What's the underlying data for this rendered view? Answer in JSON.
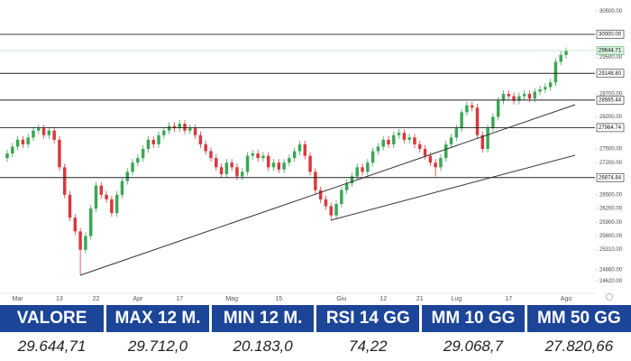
{
  "chart_data": {
    "type": "candlestick",
    "up_color": "#3aa655",
    "down_color": "#d8383d",
    "categories": [
      null,
      null,
      "Mar",
      null,
      null,
      null,
      null,
      null,
      null,
      null,
      "13",
      null,
      null,
      null,
      null,
      null,
      null,
      "22",
      null,
      null,
      null,
      null,
      null,
      null,
      null,
      "Apr",
      null,
      null,
      null,
      null,
      null,
      null,
      null,
      "17",
      null,
      null,
      null,
      null,
      null,
      null,
      null,
      null,
      null,
      "Mag",
      null,
      null,
      null,
      null,
      null,
      null,
      null,
      null,
      "15",
      null,
      null,
      null,
      null,
      null,
      null,
      null,
      null,
      null,
      null,
      null,
      "Giu",
      null,
      null,
      null,
      null,
      null,
      null,
      null,
      "12",
      null,
      null,
      null,
      null,
      null,
      null,
      "21",
      null,
      null,
      null,
      null,
      null,
      null,
      "Lug",
      null,
      null,
      null,
      null,
      null,
      null,
      null,
      null,
      null,
      "17",
      null,
      null,
      null,
      null,
      null,
      null,
      null,
      null,
      null,
      null,
      "Ago"
    ],
    "open": [
      27300,
      27400,
      27550,
      27700,
      27600,
      27750,
      27900,
      27950,
      27800,
      27900,
      27700,
      27100,
      26500,
      26000,
      25700,
      25300,
      25600,
      26200,
      26700,
      26500,
      26400,
      26100,
      26500,
      26800,
      27000,
      27200,
      27300,
      27500,
      27700,
      27600,
      27800,
      27900,
      28000,
      27950,
      28050,
      27900,
      27950,
      27800,
      27600,
      27450,
      27300,
      27100,
      26950,
      27200,
      27100,
      26900,
      27000,
      27350,
      27400,
      27300,
      27350,
      27100,
      27200,
      27050,
      27200,
      27300,
      27450,
      27600,
      27350,
      27000,
      26600,
      26400,
      26250,
      26050,
      26300,
      26600,
      26750,
      26900,
      27100,
      27000,
      27200,
      27450,
      27550,
      27700,
      27600,
      27800,
      27850,
      27700,
      27750,
      27600,
      27500,
      27350,
      27200,
      27100,
      27300,
      27600,
      27750,
      27950,
      28300,
      28450,
      28400,
      27800,
      27500,
      27950,
      28200,
      28550,
      28700,
      28650,
      28550,
      28650,
      28700,
      28600,
      28750,
      28800,
      28850,
      28950,
      29400,
      29550
    ],
    "high": [
      27480,
      27630,
      27780,
      27780,
      27830,
      27980,
      28030,
      28030,
      27980,
      27980,
      27780,
      27180,
      26580,
      26080,
      25780,
      25680,
      26280,
      26780,
      26780,
      26580,
      26480,
      26580,
      26880,
      27080,
      27280,
      27380,
      27580,
      27780,
      27780,
      27880,
      27980,
      28080,
      28080,
      28130,
      28130,
      28030,
      28030,
      27880,
      27680,
      27530,
      27380,
      27180,
      27280,
      27280,
      27180,
      27080,
      27430,
      27480,
      27480,
      27430,
      27430,
      27280,
      27280,
      27280,
      27380,
      27530,
      27680,
      27680,
      27430,
      27080,
      26680,
      26480,
      26330,
      26380,
      26680,
      26830,
      26980,
      27180,
      27180,
      27280,
      27530,
      27630,
      27780,
      27780,
      27880,
      27930,
      27930,
      27830,
      27830,
      27680,
      27580,
      27430,
      27280,
      27380,
      27680,
      27830,
      28030,
      28380,
      28530,
      28530,
      28480,
      27880,
      28030,
      28280,
      28630,
      28780,
      28780,
      28730,
      28730,
      28780,
      28780,
      28830,
      28880,
      28930,
      29030,
      29480,
      29630,
      29712
    ],
    "low": [
      27220,
      27320,
      27470,
      27520,
      27520,
      27670,
      27820,
      27720,
      27720,
      27620,
      27020,
      26420,
      25920,
      25620,
      24750,
      25220,
      25520,
      26120,
      26420,
      26320,
      26020,
      26020,
      26420,
      26720,
      26920,
      27120,
      27220,
      27420,
      27520,
      27520,
      27720,
      27820,
      27870,
      27870,
      27820,
      27820,
      27720,
      27520,
      27370,
      27220,
      27020,
      26870,
      26870,
      27020,
      26820,
      26820,
      26920,
      27270,
      27220,
      27220,
      27020,
      27020,
      26970,
      26970,
      27120,
      27220,
      27370,
      27270,
      26920,
      26520,
      26320,
      26170,
      25950,
      25970,
      26220,
      26520,
      26670,
      26820,
      26920,
      26920,
      27120,
      27370,
      27470,
      27520,
      27520,
      27720,
      27620,
      27620,
      27520,
      27420,
      27270,
      27120,
      26900,
      27020,
      27220,
      27520,
      27670,
      27870,
      28220,
      28320,
      27720,
      27420,
      27420,
      27870,
      28120,
      28470,
      28570,
      28470,
      28470,
      28570,
      28520,
      28520,
      28670,
      28720,
      28770,
      28870,
      29320,
      29470
    ],
    "close": [
      27400,
      27550,
      27700,
      27600,
      27750,
      27900,
      27950,
      27800,
      27900,
      27700,
      27100,
      26500,
      26000,
      25700,
      25300,
      25600,
      26200,
      26700,
      26500,
      26400,
      26100,
      26500,
      26800,
      27000,
      27200,
      27300,
      27500,
      27700,
      27600,
      27800,
      27900,
      28000,
      27950,
      28050,
      27900,
      27950,
      27800,
      27600,
      27450,
      27300,
      27100,
      26950,
      27200,
      27100,
      26900,
      27000,
      27350,
      27400,
      27300,
      27350,
      27100,
      27200,
      27050,
      27200,
      27300,
      27450,
      27600,
      27350,
      27000,
      26600,
      26400,
      26250,
      26050,
      26300,
      26600,
      26750,
      26900,
      27100,
      27000,
      27200,
      27450,
      27550,
      27700,
      27600,
      27800,
      27850,
      27700,
      27750,
      27600,
      27500,
      27350,
      27200,
      27100,
      27300,
      27600,
      27750,
      27950,
      28300,
      28450,
      28400,
      27800,
      27500,
      27950,
      28200,
      28550,
      28700,
      28650,
      28550,
      28650,
      28700,
      28600,
      28750,
      28800,
      28850,
      28950,
      29400,
      29550,
      29644.71
    ],
    "ylim": [
      24350,
      30650
    ],
    "yticks": [
      {
        "value": 30500,
        "label": "30500.00"
      },
      {
        "value": 29500,
        "label": "29500.00"
      },
      {
        "value": 28700,
        "label": "28700.00"
      },
      {
        "value": 28200,
        "label": "28200.00"
      },
      {
        "value": 27500,
        "label": "27500.00"
      },
      {
        "value": 27200,
        "label": "27200.00"
      },
      {
        "value": 26500,
        "label": "26500.00"
      },
      {
        "value": 26200,
        "label": "26200.00"
      },
      {
        "value": 25900,
        "label": "25900.00"
      },
      {
        "value": 25600,
        "label": "25600.00"
      },
      {
        "value": 25310,
        "label": "25310.00"
      },
      {
        "value": 24860,
        "label": "24860.00"
      },
      {
        "value": 24620,
        "label": "24620.00"
      }
    ],
    "levels": [
      {
        "value": 30000,
        "label": "30000.00"
      },
      {
        "value": 29148.8,
        "label": "29148.80"
      },
      {
        "value": 28565.44,
        "label": "28565.44"
      },
      {
        "value": 27964.74,
        "label": "27964.74"
      },
      {
        "value": 26874.84,
        "label": "26874.84"
      }
    ],
    "last_price": {
      "value": 29644.71,
      "label": "29644.71"
    }
  },
  "table": {
    "headers": [
      "VALORE",
      "MAX 12 M.",
      "MIN 12 M.",
      "RSI 14 GG",
      "MM 10 GG",
      "MM 50 GG"
    ],
    "values": [
      "29.644,71",
      "29.712,0",
      "20.183,0",
      "74,22",
      "29.068,7",
      "27.820,66"
    ]
  }
}
